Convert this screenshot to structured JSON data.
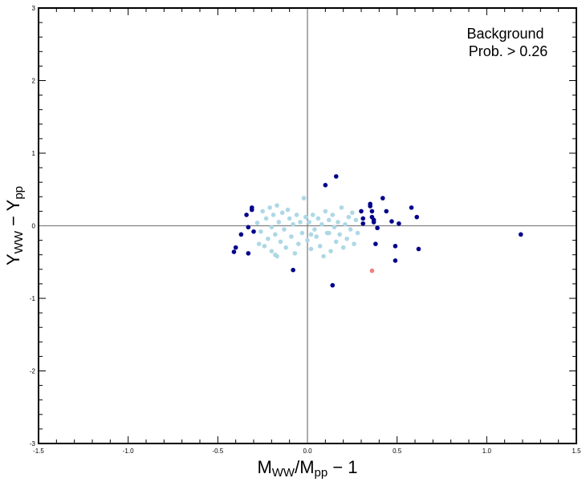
{
  "chart_data": {
    "type": "scatter",
    "title": "",
    "xlabel": {
      "main": "M",
      "sub1": "WW",
      "mid": "/M",
      "sub2": "pp",
      "tail": " − 1"
    },
    "ylabel": {
      "main": "Y",
      "sub1": "WW",
      "mid": " − Y",
      "sub2": "pp"
    },
    "xlim": [
      -1.5,
      1.5
    ],
    "ylim": [
      -3,
      3
    ],
    "xticks": [
      "-1.5",
      "-1.0",
      "-0.5",
      "0.0",
      "0.5",
      "1.0",
      "1.5"
    ],
    "yticks": [
      "-3",
      "-2",
      "-1",
      "0",
      "1",
      "2",
      "3"
    ],
    "grid": false,
    "reference_lines": {
      "x": 0,
      "y": 0
    },
    "annotation_lines": [
      "Background",
      "Prob. > 0.26"
    ],
    "series": [
      {
        "color": "#00008B",
        "points": [
          [
            -0.4,
            -0.3
          ],
          [
            -0.41,
            -0.36
          ],
          [
            -0.37,
            -0.12
          ],
          [
            -0.34,
            0.15
          ],
          [
            -0.33,
            -0.02
          ],
          [
            -0.33,
            -0.38
          ],
          [
            -0.31,
            0.25
          ],
          [
            -0.31,
            0.22
          ],
          [
            -0.3,
            -0.08
          ],
          [
            -0.08,
            -0.61
          ],
          [
            0.1,
            0.56
          ],
          [
            0.14,
            -0.82
          ],
          [
            0.16,
            0.68
          ],
          [
            0.3,
            0.2
          ],
          [
            0.31,
            0.1
          ],
          [
            0.31,
            0.03
          ],
          [
            0.35,
            0.3
          ],
          [
            0.35,
            0.27
          ],
          [
            0.36,
            0.2
          ],
          [
            0.36,
            0.12
          ],
          [
            0.37,
            0.08
          ],
          [
            0.37,
            0.05
          ],
          [
            0.38,
            -0.25
          ],
          [
            0.39,
            -0.03
          ],
          [
            0.42,
            0.38
          ],
          [
            0.44,
            0.2
          ],
          [
            0.47,
            0.06
          ],
          [
            0.49,
            -0.28
          ],
          [
            0.49,
            -0.48
          ],
          [
            0.51,
            0.03
          ],
          [
            0.58,
            0.25
          ],
          [
            0.61,
            0.12
          ],
          [
            0.62,
            -0.32
          ],
          [
            1.19,
            -0.12
          ]
        ]
      },
      {
        "color": "#ADD8E6",
        "points": [
          [
            -0.28,
            0.04
          ],
          [
            -0.26,
            -0.08
          ],
          [
            -0.25,
            0.2
          ],
          [
            -0.24,
            -0.28
          ],
          [
            -0.23,
            0.1
          ],
          [
            -0.22,
            -0.18
          ],
          [
            -0.21,
            0.25
          ],
          [
            -0.2,
            -0.02
          ],
          [
            -0.2,
            -0.35
          ],
          [
            -0.19,
            0.15
          ],
          [
            -0.18,
            -0.12
          ],
          [
            -0.17,
            0.28
          ],
          [
            -0.17,
            -0.42
          ],
          [
            -0.16,
            0.05
          ],
          [
            -0.15,
            -0.22
          ],
          [
            -0.14,
            0.18
          ],
          [
            -0.13,
            -0.05
          ],
          [
            -0.12,
            -0.3
          ],
          [
            -0.11,
            0.22
          ],
          [
            -0.1,
            0.1
          ],
          [
            -0.09,
            -0.15
          ],
          [
            -0.08,
            0.02
          ],
          [
            -0.07,
            -0.38
          ],
          [
            -0.06,
            0.15
          ],
          [
            -0.05,
            -0.25
          ],
          [
            -0.04,
            0.05
          ],
          [
            -0.03,
            -0.1
          ],
          [
            -0.02,
            0.38
          ],
          [
            -0.01,
            0.12
          ],
          [
            0.0,
            -0.2
          ],
          [
            0.01,
            0.05
          ],
          [
            0.02,
            -0.32
          ],
          [
            0.03,
            0.15
          ],
          [
            0.04,
            -0.05
          ],
          [
            0.05,
            -0.15
          ],
          [
            0.06,
            0.1
          ],
          [
            0.07,
            -0.28
          ],
          [
            0.08,
            0.02
          ],
          [
            0.09,
            -0.42
          ],
          [
            0.1,
            0.2
          ],
          [
            0.11,
            -0.1
          ],
          [
            0.12,
            0.08
          ],
          [
            0.13,
            -0.35
          ],
          [
            0.14,
            0.15
          ],
          [
            0.15,
            -0.02
          ],
          [
            0.16,
            -0.22
          ],
          [
            0.17,
            0.05
          ],
          [
            0.18,
            -0.12
          ],
          [
            0.19,
            0.25
          ],
          [
            0.2,
            -0.3
          ],
          [
            0.21,
            0.02
          ],
          [
            0.22,
            -0.18
          ],
          [
            0.23,
            0.12
          ],
          [
            0.24,
            -0.05
          ],
          [
            0.25,
            0.18
          ],
          [
            0.26,
            -0.25
          ],
          [
            0.27,
            0.08
          ],
          [
            0.28,
            -0.1
          ],
          [
            -0.27,
            -0.25
          ],
          [
            -0.18,
            -0.4
          ],
          [
            0.02,
            -0.12
          ],
          [
            0.12,
            -0.1
          ]
        ]
      },
      {
        "color": "#F08080",
        "points": [
          [
            0.36,
            -0.62
          ]
        ]
      }
    ]
  }
}
